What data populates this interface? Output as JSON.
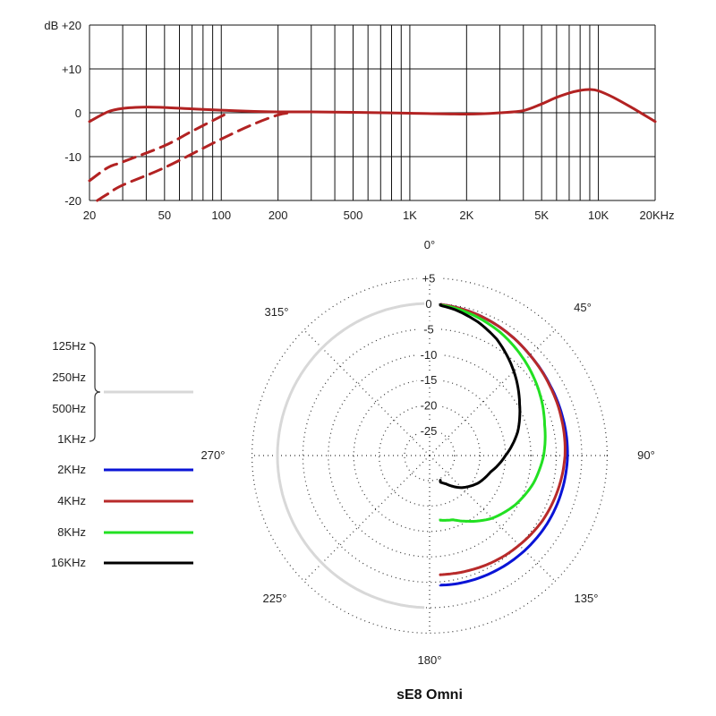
{
  "title": "sE8  Omni",
  "chart_data": [
    {
      "type": "line",
      "xscale": "log",
      "xlim": [
        20,
        20000
      ],
      "ylim": [
        -20,
        20
      ],
      "y_tick_values": [
        20,
        10,
        0,
        -10,
        -20
      ],
      "y_tick_labels": [
        "dB  +20",
        "+10",
        "0",
        "-10",
        "-20"
      ],
      "x_tick_values": [
        20,
        50,
        100,
        200,
        500,
        1000,
        2000,
        5000,
        10000,
        20000
      ],
      "x_tick_labels": [
        "20",
        "50",
        "100",
        "200",
        "500",
        "1K",
        "2K",
        "5K",
        "10K",
        "20KHz"
      ],
      "grid": true,
      "series": [
        {
          "style": "solid",
          "color": "#b22222",
          "x": [
            20,
            25,
            30,
            40,
            50,
            70,
            100,
            150,
            200,
            300,
            500,
            1000,
            2000,
            3000,
            4000,
            5000,
            6000,
            7000,
            8000,
            9000,
            10000,
            12000,
            15000,
            20000
          ],
          "y": [
            -2,
            0.2,
            1,
            1.3,
            1.2,
            0.9,
            0.6,
            0.3,
            0.2,
            0.2,
            0.1,
            -0.1,
            -0.3,
            0,
            0.5,
            2,
            3.5,
            4.5,
            5.1,
            5.3,
            5.0,
            3.5,
            1.2,
            -2
          ]
        },
        {
          "style": "dashed",
          "color": "#b22222",
          "x": [
            20,
            25,
            30,
            50,
            70,
            100,
            110
          ],
          "y": [
            -15.5,
            -12.5,
            -11.2,
            -7.5,
            -4.2,
            -0.8,
            0
          ]
        },
        {
          "style": "dashed",
          "color": "#b22222",
          "x": [
            22,
            25,
            30,
            50,
            100,
            150,
            200,
            230
          ],
          "y": [
            -20,
            -18.5,
            -16.5,
            -12.5,
            -6,
            -2.5,
            -0.5,
            0
          ]
        }
      ]
    },
    {
      "type": "polar",
      "r_tick_labels": [
        "+5",
        "0",
        "-5",
        "-10",
        "-15",
        "-20",
        "-25"
      ],
      "angle_labels": [
        "0°",
        "45°",
        "90°",
        "135°",
        "180°",
        "225°",
        "270°",
        "315°"
      ],
      "legend": {
        "group_labels": [
          "125Hz",
          "250Hz",
          "500Hz",
          "1KHz"
        ],
        "group_color": "#d8d8d8",
        "items": [
          {
            "label": "2KHz",
            "color": "#0a14d6"
          },
          {
            "label": "4KHz",
            "color": "#b82a2a"
          },
          {
            "label": "8KHz",
            "color": "#22e022"
          },
          {
            "label": "16KHz",
            "color": "#000000"
          }
        ]
      },
      "series": [
        {
          "name": "125Hz-1KHz",
          "color": "#d8d8d8",
          "angles": [
            -180,
            0
          ],
          "levels_db": [
            0,
            0
          ]
        },
        {
          "name": "2KHz",
          "color": "#0a14d6",
          "angles": [
            0,
            10,
            20,
            30,
            45,
            60,
            75,
            90,
            105,
            120,
            135,
            150,
            160,
            170,
            180
          ],
          "levels_db": [
            0,
            -0.3,
            -0.7,
            -1.2,
            -2,
            -2.5,
            -2.7,
            -2.8,
            -3,
            -3.2,
            -3.5,
            -3.8,
            -4,
            -4.2,
            -4.5
          ]
        },
        {
          "name": "4KHz",
          "color": "#b82a2a",
          "angles": [
            0,
            10,
            20,
            30,
            45,
            60,
            75,
            90,
            105,
            120,
            135,
            150,
            160,
            170,
            180
          ],
          "levels_db": [
            0,
            -0.3,
            -0.7,
            -1.2,
            -2,
            -2.6,
            -3,
            -3.3,
            -3.8,
            -4.3,
            -5,
            -5.6,
            -6,
            -6.3,
            -6.5
          ]
        },
        {
          "name": "8KHz",
          "color": "#22e022",
          "angles": [
            0,
            10,
            20,
            30,
            45,
            60,
            75,
            90,
            105,
            120,
            135,
            150,
            160,
            170,
            180
          ],
          "levels_db": [
            0,
            -0.5,
            -1.2,
            -2,
            -3.5,
            -5,
            -6.5,
            -7.5,
            -8.8,
            -10.5,
            -12.5,
            -15,
            -16.5,
            -17,
            -17.5
          ]
        },
        {
          "name": "16KHz",
          "color": "#000000",
          "angles": [
            0,
            10,
            20,
            30,
            45,
            60,
            75,
            90,
            105,
            120,
            135,
            150,
            160,
            170,
            180
          ],
          "levels_db": [
            0,
            -0.8,
            -2,
            -3.5,
            -6.5,
            -9.5,
            -12,
            -15,
            -17.5,
            -19,
            -21,
            -23.5,
            -24.5,
            -25,
            -25
          ]
        }
      ]
    }
  ]
}
